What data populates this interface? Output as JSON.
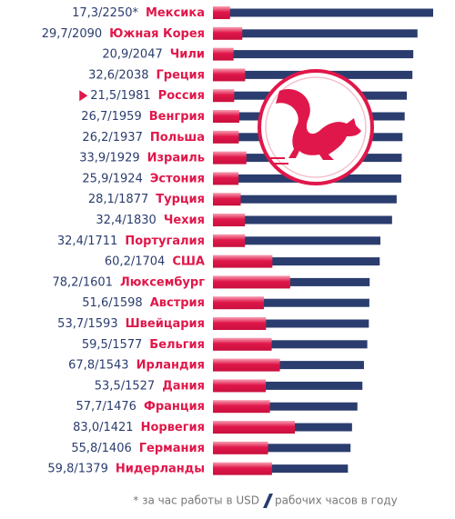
{
  "chart_data": {
    "type": "bar",
    "orientation": "horizontal",
    "categories": [
      "Мексика",
      "Южная Корея",
      "Чили",
      "Греция",
      "Россия",
      "Венгрия",
      "Польша",
      "Израиль",
      "Эстония",
      "Турция",
      "Чехия",
      "Португалия",
      "США",
      "Люксембург",
      "Австрия",
      "Швейцария",
      "Бельгия",
      "Ирландия",
      "Дания",
      "Франция",
      "Норвегия",
      "Германия",
      "Нидерланды"
    ],
    "separator": "/",
    "highlight": 4,
    "series": [
      {
        "name": "* за час работы в USD",
        "color": "#e0174a",
        "values": [
          17.3,
          29.7,
          20.9,
          32.6,
          21.5,
          26.7,
          26.2,
          33.9,
          25.9,
          28.1,
          32.4,
          32.4,
          60.2,
          78.2,
          51.6,
          53.7,
          59.5,
          67.8,
          53.5,
          57.7,
          83.0,
          55.8,
          59.8
        ],
        "value_labels": [
          "17,3",
          "29,7",
          "20,9",
          "32,6",
          "21,5",
          "26,7",
          "26,2",
          "33,9",
          "25,9",
          "28,1",
          "32,4",
          "32,4",
          "60,2",
          "78,2",
          "51,6",
          "53,7",
          "59,5",
          "67,8",
          "53,5",
          "57,7",
          "83,0",
          "55,8",
          "59,8"
        ],
        "axis": "x2"
      },
      {
        "name": "рабочих часов в году",
        "color": "#2b3d6e",
        "values": [
          2250,
          2090,
          2047,
          2038,
          1981,
          1959,
          1937,
          1929,
          1924,
          1877,
          1830,
          1711,
          1704,
          1601,
          1598,
          1593,
          1577,
          1543,
          1527,
          1476,
          1421,
          1406,
          1379
        ],
        "value_labels": [
          "2250*",
          "2090",
          "2047",
          "2038",
          "1981",
          "1959",
          "1937",
          "1929",
          "1924",
          "1877",
          "1830",
          "1711",
          "1704",
          "1601",
          "1598",
          "1593",
          "1577",
          "1543",
          "1527",
          "1476",
          "1421",
          "1406",
          "1379"
        ]
      }
    ],
    "xlim": [
      0,
      2250
    ],
    "x2lim": [
      0,
      223
    ]
  }
}
